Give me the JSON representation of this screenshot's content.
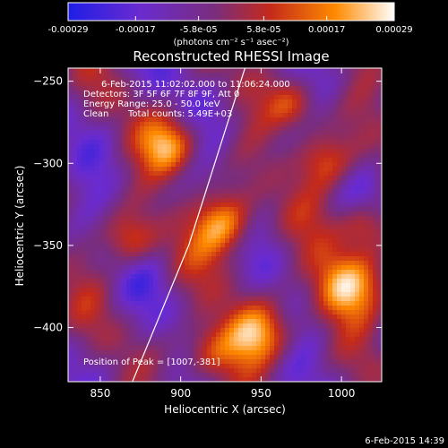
{
  "colorbar": {
    "tick_labels": [
      "-0.00029",
      "-0.00017",
      "-5.8e-05",
      "5.8e-05",
      "0.00017",
      "0.00029"
    ],
    "tick_values": [
      -0.00029,
      -0.00017,
      -5.8e-05,
      5.8e-05,
      0.00017,
      0.00029
    ],
    "range": [
      -0.00029,
      0.00029
    ],
    "units_label": "(photons cm⁻² s⁻¹ asec⁻²)",
    "colors": [
      "#1e1ee6",
      "#6a2bd0",
      "#7a2d7d",
      "#c42a1a",
      "#ff8a00",
      "#ffffff"
    ]
  },
  "chart_data": {
    "type": "heatmap",
    "title": "Reconstructed RHESSI Image",
    "xlabel": "Heliocentric X (arcsec)",
    "ylabel": "Heliocentric Y (arcsec)",
    "xlim": [
      830,
      1025
    ],
    "ylim": [
      -433,
      -242
    ],
    "x_ticks": [
      850,
      900,
      950,
      1000
    ],
    "y_ticks": [
      -250,
      -300,
      -350,
      -400
    ],
    "x_tick_labels": [
      "850",
      "900",
      "950",
      "1000"
    ],
    "y_tick_labels": [
      "−250",
      "−300",
      "−350",
      "−400"
    ],
    "limb_line": [
      [
        870,
        -433
      ],
      [
        905,
        -350
      ],
      [
        940,
        -242
      ]
    ],
    "peak_position": [
      1007,
      -381
    ],
    "annotations": [
      "6-Feb-2015 11:02:02.000 to 11:06:24.000",
      "Detectors: 3F 5F 6F 7F 8F 9F, Att 0",
      "Energy Range: 25.0 - 50.0 keV",
      "Clean",
      "Total counts: 5.49E+03",
      "Position of Peak = [1007,-381]"
    ]
  },
  "timestamp": "6-Feb-2015 14:39"
}
